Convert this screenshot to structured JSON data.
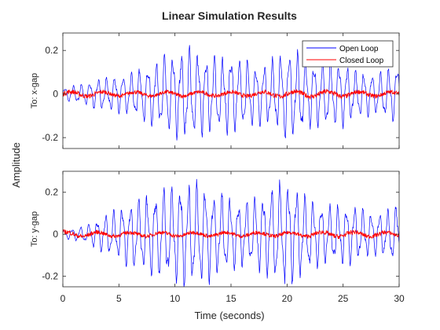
{
  "chart_data": {
    "type": "line",
    "title": "Linear Simulation Results",
    "xlabel": "Time (seconds)",
    "ylabel": "Amplitude",
    "xlim": [
      0,
      30
    ],
    "x_ticks": [
      "0",
      "5",
      "10",
      "15",
      "20",
      "25",
      "30"
    ],
    "grid": false,
    "legend": {
      "placement": "top-right",
      "entries": [
        "Open Loop",
        "Closed Loop"
      ]
    },
    "subplots": [
      {
        "ylabel": "To: x-gap",
        "ylim": [
          -0.25,
          0.28
        ],
        "y_ticks": [
          "0.2",
          "0",
          "-0.2"
        ],
        "y_tick_values": [
          0.2,
          0,
          -0.2
        ],
        "series": [
          {
            "name": "Open Loop",
            "color": "#0000ff",
            "envelope_t": [
              0,
              1,
              2,
              3,
              4,
              5,
              6,
              7,
              8,
              9,
              10,
              11,
              12,
              13,
              14,
              15,
              16,
              17,
              18,
              19,
              20,
              21,
              22,
              23,
              24,
              25,
              26,
              27,
              28,
              29,
              30
            ],
            "envelope_amp": [
              0.03,
              0.04,
              0.05,
              0.07,
              0.08,
              0.09,
              0.1,
              0.12,
              0.15,
              0.18,
              0.2,
              0.22,
              0.2,
              0.18,
              0.17,
              0.19,
              0.17,
              0.15,
              0.14,
              0.17,
              0.22,
              0.2,
              0.16,
              0.15,
              0.16,
              0.15,
              0.12,
              0.1,
              0.1,
              0.12,
              0.15
            ]
          },
          {
            "name": "Closed Loop",
            "color": "#ff0000",
            "envelope_t": [
              0,
              5,
              10,
              15,
              20,
              25,
              30
            ],
            "envelope_amp": [
              0.025,
              0.02,
              0.02,
              0.02,
              0.025,
              0.025,
              0.02
            ]
          }
        ]
      },
      {
        "ylabel": "To: y-gap",
        "ylim": [
          -0.25,
          0.3
        ],
        "y_ticks": [
          "0.2",
          "0",
          "-0.2"
        ],
        "y_tick_values": [
          0.2,
          0,
          -0.2
        ],
        "series": [
          {
            "name": "Open Loop",
            "color": "#0000ff",
            "envelope_t": [
              0,
              1,
              2,
              3,
              4,
              5,
              6,
              7,
              8,
              9,
              10,
              11,
              12,
              13,
              14,
              15,
              16,
              17,
              18,
              19,
              20,
              21,
              22,
              23,
              24,
              25,
              26,
              27,
              28,
              29,
              30
            ],
            "envelope_amp": [
              0.02,
              0.03,
              0.04,
              0.07,
              0.1,
              0.13,
              0.16,
              0.18,
              0.2,
              0.22,
              0.24,
              0.25,
              0.25,
              0.23,
              0.2,
              0.18,
              0.16,
              0.17,
              0.2,
              0.24,
              0.26,
              0.23,
              0.18,
              0.15,
              0.14,
              0.15,
              0.14,
              0.12,
              0.1,
              0.12,
              0.16
            ]
          },
          {
            "name": "Closed Loop",
            "color": "#ff0000",
            "envelope_t": [
              0,
              5,
              10,
              15,
              20,
              25,
              30
            ],
            "envelope_amp": [
              0.025,
              0.02,
              0.02,
              0.02,
              0.02,
              0.025,
              0.02
            ]
          }
        ]
      }
    ]
  }
}
